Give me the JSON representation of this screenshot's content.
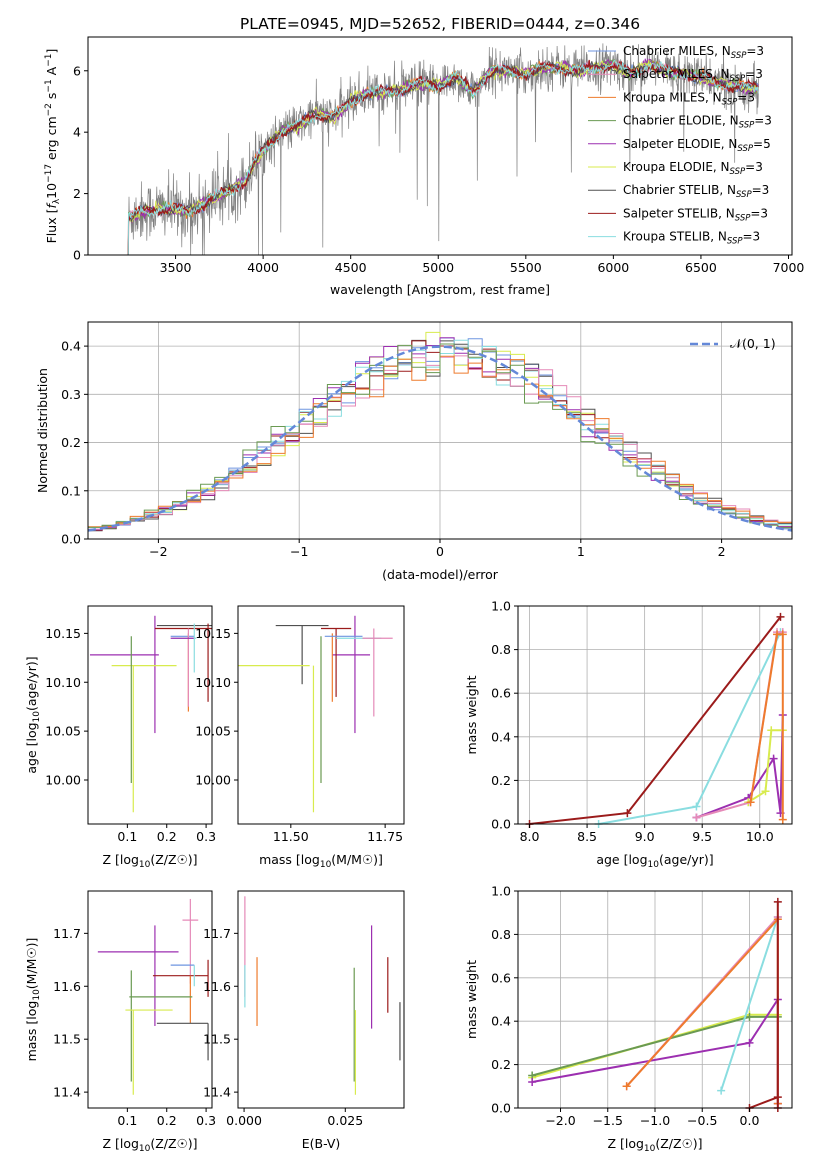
{
  "title": "PLATE=0945, MJD=52652, FIBERID=0444, z=0.346",
  "colors": {
    "chabrier_miles": "#6f95e0",
    "salpeter_miles": "#e58ab8",
    "kroupa_miles": "#ee7b2d",
    "chabrier_elodie": "#6a9a52",
    "salpeter_elodie": "#9c2fb0",
    "kroupa_elodie": "#d8eb4e",
    "chabrier_stelib": "#505050",
    "salpeter_stelib": "#9b1b1b",
    "kroupa_stelib": "#8adde0",
    "grid": "#b0b0b0",
    "spectrum_data": "#808080",
    "gaussian": "#6488d8"
  },
  "chart_data": [
    {
      "id": "spectrum",
      "type": "line",
      "xlabel": "wavelength [Angstrom, rest frame]",
      "ylabel": "Flux [f_λ 10^-17 erg cm^-2 s^-1 A^-1]",
      "ylabel_parts": {
        "main": "Flux [",
        "f": "f",
        "lam": "λ",
        "e10": "10",
        "em17": "−17",
        "erg": " erg cm",
        "em2": "−2",
        "s": " s",
        "em1a": "−1",
        "A": " A",
        "em1b": "−1",
        "close": "]"
      },
      "xlim": [
        3000,
        7020
      ],
      "ylim": [
        0,
        7.1
      ],
      "xticks": [
        3500,
        4000,
        4500,
        5000,
        5500,
        6000,
        6500,
        7000
      ],
      "yticks": [
        0,
        2,
        4,
        6
      ],
      "grid": false,
      "legend_position": "top-right",
      "legend": [
        {
          "name": "Chabrier MILES",
          "nssp": "3"
        },
        {
          "name": "Salpeter MILES",
          "nssp": "3"
        },
        {
          "name": "Kroupa MILES",
          "nssp": "3"
        },
        {
          "name": "Chabrier ELODIE",
          "nssp": "3"
        },
        {
          "name": "Salpeter ELODIE",
          "nssp": "5"
        },
        {
          "name": "Kroupa ELODIE",
          "nssp": "3"
        },
        {
          "name": "Chabrier STELIB",
          "nssp": "3"
        },
        {
          "name": "Salpeter STELIB",
          "nssp": "3"
        },
        {
          "name": "Kroupa STELIB",
          "nssp": "3"
        }
      ],
      "legend_sub": "SSP",
      "legend_prefix": "N",
      "model_anchor": {
        "x": [
          3230,
          3300,
          3400,
          3500,
          3560,
          3640,
          3700,
          3800,
          3900,
          3950,
          4000,
          4100,
          4200,
          4300,
          4400,
          4500,
          4600,
          4700,
          4800,
          4900,
          5000,
          5100,
          5200,
          5300,
          5400,
          5500,
          5600,
          5700,
          5800,
          5900,
          6000,
          6100,
          6200,
          6300,
          6400,
          6500,
          6600,
          6700,
          6830
        ],
        "y": [
          1.2,
          1.4,
          1.5,
          1.5,
          1.4,
          1.6,
          1.8,
          2.1,
          2.4,
          3.0,
          3.4,
          4.0,
          4.2,
          4.6,
          4.5,
          5.0,
          5.3,
          5.3,
          5.4,
          5.6,
          5.5,
          5.8,
          5.3,
          6.0,
          6.0,
          5.9,
          6.1,
          6.1,
          6.0,
          6.1,
          6.2,
          5.9,
          6.2,
          6.0,
          5.9,
          5.8,
          5.6,
          5.5,
          5.4
        ]
      }
    },
    {
      "id": "residuals",
      "type": "line",
      "xlabel": "(data-model)/error",
      "ylabel": "Normed distribution",
      "xlim": [
        -2.5,
        2.5
      ],
      "ylim": [
        0,
        0.45
      ],
      "xticks": [
        -2,
        -1,
        0,
        1,
        2
      ],
      "yticks": [
        0.0,
        0.1,
        0.2,
        0.3,
        0.4
      ],
      "grid": true,
      "legend_position": "top-right",
      "gaussian_label": "𝒩(0, 1)",
      "bin_width": 0.1
    },
    {
      "id": "age_vs_Z",
      "type": "scatter",
      "xlabel": "Z [log10(Z/Z☉)]",
      "ylabel": "age  [log10(age/yr)]",
      "xlim": [
        0.0,
        0.315
      ],
      "ylim": [
        9.955,
        10.178
      ],
      "xticks": [
        0.1,
        0.2,
        0.3
      ],
      "yticks": [
        10.0,
        10.05,
        10.1,
        10.15
      ],
      "points": [
        {
          "c": "salpeter_elodie",
          "x": 0.105,
          "y": 10.128,
          "xl": 0.1,
          "xh": 0.075,
          "yl": 0.0,
          "yh": 0.0
        },
        {
          "c": "salpeter_elodie",
          "x": 0.17,
          "y": 10.128,
          "xl": 0.0,
          "xh": 0.0,
          "yl": 0.08,
          "yh": 0.04
        },
        {
          "c": "kroupa_elodie",
          "x": 0.155,
          "y": 10.117,
          "xl": 0.095,
          "xh": 0.07,
          "yl": 0.0,
          "yh": 0.0
        },
        {
          "c": "kroupa_elodie",
          "x": 0.115,
          "y": 10.117,
          "xl": 0.0,
          "xh": 0.0,
          "yl": 0.15,
          "yh": 0.0
        },
        {
          "c": "chabrier_elodie",
          "x": 0.11,
          "y": 10.117,
          "xl": 0.0,
          "xh": 0.0,
          "yl": 0.12,
          "yh": 0.03
        },
        {
          "c": "salpeter_stelib",
          "x": 0.245,
          "y": 10.155,
          "xl": 0.075,
          "xh": 0.07,
          "yl": 0.0,
          "yh": 0.0
        },
        {
          "c": "chabrier_stelib",
          "x": 0.245,
          "y": 10.158,
          "xl": 0.07,
          "xh": 0.07,
          "yl": 0.0,
          "yh": 0.0
        },
        {
          "c": "salpeter_stelib",
          "x": 0.305,
          "y": 10.15,
          "xl": 0.0,
          "xh": 0.0,
          "yl": 0.07,
          "yh": 0.01
        },
        {
          "c": "chabrier_miles",
          "x": 0.24,
          "y": 10.147,
          "xl": 0.03,
          "xh": 0.03,
          "yl": 0.0,
          "yh": 0.0
        },
        {
          "c": "kroupa_stelib",
          "x": 0.245,
          "y": 10.145,
          "xl": 0.03,
          "xh": 0.03,
          "yl": 0.0,
          "yh": 0.0
        },
        {
          "c": "kroupa_miles",
          "x": 0.255,
          "y": 10.14,
          "xl": 0.0,
          "xh": 0.0,
          "yl": 0.07,
          "yh": 0.01
        },
        {
          "c": "salpeter_miles",
          "x": 0.255,
          "y": 10.145,
          "xl": 0.0,
          "xh": 0.0,
          "yl": 0.07,
          "yh": 0.01
        },
        {
          "c": "salpeter_elodie",
          "x": 0.25,
          "y": 10.145,
          "xl": 0.04,
          "xh": 0.02,
          "yl": 0.0,
          "yh": 0.0
        },
        {
          "c": "kroupa_stelib",
          "x": 0.27,
          "y": 10.14,
          "xl": 0.0,
          "xh": 0.0,
          "yl": 0.03,
          "yh": 0.02
        }
      ]
    },
    {
      "id": "age_vs_mass",
      "type": "scatter",
      "xlabel": "mass [log10(M/M☉)]",
      "ylabel": "",
      "xlim": [
        11.36,
        11.8
      ],
      "ylim": [
        9.955,
        10.178
      ],
      "xticks": [
        11.5,
        11.75
      ],
      "yticks": [
        10.0,
        10.05,
        10.1,
        10.15
      ],
      "points": [
        {
          "c": "chabrier_stelib",
          "x": 11.53,
          "y": 10.158,
          "xl": 0.07,
          "xh": 0.07,
          "yl": 0.0,
          "yh": 0.0
        },
        {
          "c": "chabrier_stelib",
          "x": 11.53,
          "y": 10.158,
          "xl": 0.0,
          "xh": 0.0,
          "yl": 0.06,
          "yh": 0.0
        },
        {
          "c": "kroupa_elodie",
          "x": 11.45,
          "y": 10.117,
          "xl": 0.1,
          "xh": 0.1,
          "yl": 0.0,
          "yh": 0.0
        },
        {
          "c": "kroupa_elodie",
          "x": 11.56,
          "y": 10.117,
          "xl": 0.0,
          "xh": 0.0,
          "yl": 0.15,
          "yh": 0.0
        },
        {
          "c": "chabrier_elodie",
          "x": 11.58,
          "y": 10.117,
          "xl": 0.0,
          "xh": 0.0,
          "yl": 0.12,
          "yh": 0.03
        },
        {
          "c": "salpeter_elodie",
          "x": 11.66,
          "y": 10.128,
          "xl": 0.05,
          "xh": 0.05,
          "yl": 0.0,
          "yh": 0.0
        },
        {
          "c": "salpeter_elodie",
          "x": 11.67,
          "y": 10.128,
          "xl": 0.0,
          "xh": 0.0,
          "yl": 0.08,
          "yh": 0.04
        },
        {
          "c": "salpeter_stelib",
          "x": 11.62,
          "y": 10.155,
          "xl": 0.04,
          "xh": 0.04,
          "yl": 0.0,
          "yh": 0.0
        },
        {
          "c": "salpeter_stelib",
          "x": 11.62,
          "y": 10.155,
          "xl": 0.0,
          "xh": 0.0,
          "yl": 0.07,
          "yh": 0.0
        },
        {
          "c": "kroupa_miles",
          "x": 11.61,
          "y": 10.14,
          "xl": 0.0,
          "xh": 0.0,
          "yl": 0.06,
          "yh": 0.01
        },
        {
          "c": "chabrier_miles",
          "x": 11.64,
          "y": 10.147,
          "xl": 0.05,
          "xh": 0.05,
          "yl": 0.0,
          "yh": 0.0
        },
        {
          "c": "kroupa_stelib",
          "x": 11.68,
          "y": 10.145,
          "xl": 0.06,
          "xh": 0.06,
          "yl": 0.0,
          "yh": 0.0
        },
        {
          "c": "salpeter_miles",
          "x": 11.72,
          "y": 10.145,
          "xl": 0.0,
          "xh": 0.0,
          "yl": 0.08,
          "yh": 0.01
        },
        {
          "c": "salpeter_miles",
          "x": 11.73,
          "y": 10.145,
          "xl": 0.04,
          "xh": 0.04,
          "yl": 0.0,
          "yh": 0.0
        }
      ]
    },
    {
      "id": "weight_vs_age",
      "type": "line",
      "xlabel": "age  [log10(age/yr)]",
      "ylabel": "mass weight",
      "xlim": [
        7.9,
        10.28
      ],
      "ylim": [
        0,
        1.0
      ],
      "xticks": [
        8.0,
        8.5,
        9.0,
        9.5,
        10.0
      ],
      "yticks": [
        0.0,
        0.2,
        0.4,
        0.6,
        0.8,
        1.0
      ],
      "grid": true,
      "series": [
        {
          "c": "kroupa_stelib",
          "x": [
            8.6,
            9.45,
            10.18
          ],
          "y": [
            0.0,
            0.08,
            0.88
          ]
        },
        {
          "c": "salpeter_elodie",
          "x": [
            9.45,
            9.9,
            10.12,
            10.18,
            10.2
          ],
          "y": [
            0.03,
            0.12,
            0.3,
            0.05,
            0.5
          ]
        },
        {
          "c": "kroupa_elodie",
          "x": [
            9.9,
            10.05,
            10.1,
            10.2
          ],
          "y": [
            0.1,
            0.15,
            0.43,
            0.43
          ]
        },
        {
          "c": "salpeter_miles",
          "x": [
            9.45,
            9.92,
            10.15,
            10.2
          ],
          "y": [
            0.03,
            0.1,
            0.88,
            0.88
          ]
        },
        {
          "c": "kroupa_miles",
          "x": [
            9.92,
            10.15,
            10.2,
            10.2
          ],
          "y": [
            0.1,
            0.87,
            0.87,
            0.02
          ]
        },
        {
          "c": "salpeter_stelib",
          "x": [
            8.0,
            8.85,
            10.18
          ],
          "y": [
            0.0,
            0.05,
            0.95
          ]
        }
      ]
    },
    {
      "id": "mass_vs_Z",
      "type": "scatter",
      "xlabel": "Z [log10(Z/Z☉)]",
      "ylabel": "mass [log10(M/M☉)]",
      "xlim": [
        0.0,
        0.315
      ],
      "ylim": [
        11.37,
        11.78
      ],
      "xticks": [
        0.1,
        0.2,
        0.3
      ],
      "yticks": [
        11.4,
        11.5,
        11.6,
        11.7
      ],
      "points": [
        {
          "c": "salpeter_elodie",
          "x": 0.12,
          "y": 11.665,
          "xl": 0.095,
          "xh": 0.11,
          "yl": 0.0,
          "yh": 0.0
        },
        {
          "c": "salpeter_elodie",
          "x": 0.17,
          "y": 11.665,
          "xl": 0.0,
          "xh": 0.0,
          "yl": 0.14,
          "yh": 0.05
        },
        {
          "c": "salpeter_miles",
          "x": 0.26,
          "y": 11.725,
          "xl": 0.02,
          "xh": 0.02,
          "yl": 0.0,
          "yh": 0.0
        },
        {
          "c": "salpeter_miles",
          "x": 0.26,
          "y": 11.725,
          "xl": 0.0,
          "xh": 0.0,
          "yl": 0.12,
          "yh": 0.04
        },
        {
          "c": "chabrier_miles",
          "x": 0.24,
          "y": 11.64,
          "xl": 0.03,
          "xh": 0.03,
          "yl": 0.0,
          "yh": 0.0
        },
        {
          "c": "salpeter_stelib",
          "x": 0.245,
          "y": 11.62,
          "xl": 0.08,
          "xh": 0.06,
          "yl": 0.0,
          "yh": 0.0
        },
        {
          "c": "kroupa_miles",
          "x": 0.26,
          "y": 11.62,
          "xl": 0.0,
          "xh": 0.0,
          "yl": 0.09,
          "yh": 0.0
        },
        {
          "c": "chabrier_elodie",
          "x": 0.185,
          "y": 11.58,
          "xl": 0.08,
          "xh": 0.08,
          "yl": 0.0,
          "yh": 0.0
        },
        {
          "c": "chabrier_elodie",
          "x": 0.11,
          "y": 11.58,
          "xl": 0.0,
          "xh": 0.0,
          "yl": 0.16,
          "yh": 0.05
        },
        {
          "c": "kroupa_elodie",
          "x": 0.155,
          "y": 11.555,
          "xl": 0.06,
          "xh": 0.06,
          "yl": 0.0,
          "yh": 0.0
        },
        {
          "c": "kroupa_elodie",
          "x": 0.115,
          "y": 11.555,
          "xl": 0.0,
          "xh": 0.0,
          "yl": 0.16,
          "yh": 0.0
        },
        {
          "c": "chabrier_stelib",
          "x": 0.245,
          "y": 11.53,
          "xl": 0.07,
          "xh": 0.06,
          "yl": 0.0,
          "yh": 0.0
        },
        {
          "c": "salpeter_stelib",
          "x": 0.305,
          "y": 11.62,
          "xl": 0.0,
          "xh": 0.0,
          "yl": 0.04,
          "yh": 0.03
        },
        {
          "c": "chabrier_stelib",
          "x": 0.305,
          "y": 11.53,
          "xl": 0.0,
          "xh": 0.0,
          "yl": 0.07,
          "yh": 0.0
        },
        {
          "c": "kroupa_stelib",
          "x": 0.27,
          "y": 11.64,
          "xl": 0.0,
          "xh": 0.0,
          "yl": 0.04,
          "yh": 0.0
        }
      ]
    },
    {
      "id": "mass_vs_ebv",
      "type": "scatter",
      "xlabel": "E(B-V)",
      "ylabel": "",
      "xlim": [
        -0.0015,
        0.0395
      ],
      "ylim": [
        11.37,
        11.78
      ],
      "xticks": [
        0.0,
        0.025
      ],
      "yticks": [
        11.4,
        11.5,
        11.6,
        11.7
      ],
      "points": [
        {
          "c": "salpeter_miles",
          "x": 0.0002,
          "y": 11.7,
          "xl": 0.0,
          "xh": 0.0,
          "yl": 0.12,
          "yh": 0.07
        },
        {
          "c": "kroupa_stelib",
          "x": 0.0002,
          "y": 11.6,
          "xl": 0.0,
          "xh": 0.0,
          "yl": 0.04,
          "yh": 0.04
        },
        {
          "c": "kroupa_miles",
          "x": 0.0032,
          "y": 11.59,
          "xl": 0.0,
          "xh": 0.0,
          "yl": 0.065,
          "yh": 0.065
        },
        {
          "c": "chabrier_elodie",
          "x": 0.0272,
          "y": 11.58,
          "xl": 0.0,
          "xh": 0.0,
          "yl": 0.16,
          "yh": 0.055
        },
        {
          "c": "kroupa_elodie",
          "x": 0.0275,
          "y": 11.555,
          "xl": 0.0,
          "xh": 0.0,
          "yl": 0.16,
          "yh": 0.0
        },
        {
          "c": "salpeter_elodie",
          "x": 0.0315,
          "y": 11.62,
          "xl": 0.0,
          "xh": 0.0,
          "yl": 0.1,
          "yh": 0.095
        },
        {
          "c": "salpeter_stelib",
          "x": 0.0355,
          "y": 11.62,
          "xl": 0.0,
          "xh": 0.0,
          "yl": 0.07,
          "yh": 0.035
        },
        {
          "c": "chabrier_stelib",
          "x": 0.0385,
          "y": 11.53,
          "xl": 0.0,
          "xh": 0.0,
          "yl": 0.07,
          "yh": 0.04
        }
      ]
    },
    {
      "id": "weight_vs_Z",
      "type": "line",
      "xlabel": "Z [log10(Z/Z☉)]",
      "ylabel": "mass weight",
      "xlim": [
        -2.45,
        0.45
      ],
      "ylim": [
        0,
        1.0
      ],
      "xticks": [
        -2.0,
        -1.5,
        -1.0,
        -0.5,
        0.0
      ],
      "yticks": [
        0.0,
        0.2,
        0.4,
        0.6,
        0.8,
        1.0
      ],
      "grid": true,
      "series": [
        {
          "c": "kroupa_elodie",
          "x": [
            -2.3,
            0.0,
            0.3
          ],
          "y": [
            0.14,
            0.43,
            0.43
          ]
        },
        {
          "c": "chabrier_elodie",
          "x": [
            -2.3,
            0.0,
            0.3
          ],
          "y": [
            0.15,
            0.42,
            0.42
          ]
        },
        {
          "c": "salpeter_elodie",
          "x": [
            -2.3,
            0.0,
            0.3,
            0.3
          ],
          "y": [
            0.12,
            0.3,
            0.5,
            0.02
          ]
        },
        {
          "c": "kroupa_stelib",
          "x": [
            -0.3,
            0.3
          ],
          "y": [
            0.08,
            0.88
          ]
        },
        {
          "c": "salpeter_miles",
          "x": [
            -1.3,
            0.3
          ],
          "y": [
            0.1,
            0.88
          ]
        },
        {
          "c": "kroupa_miles",
          "x": [
            -1.3,
            0.3,
            0.3
          ],
          "y": [
            0.1,
            0.87,
            0.02
          ]
        },
        {
          "c": "salpeter_stelib",
          "x": [
            0.0,
            0.3,
            0.3,
            0.3
          ],
          "y": [
            0.0,
            0.05,
            0.95,
            0.0
          ]
        }
      ]
    }
  ]
}
